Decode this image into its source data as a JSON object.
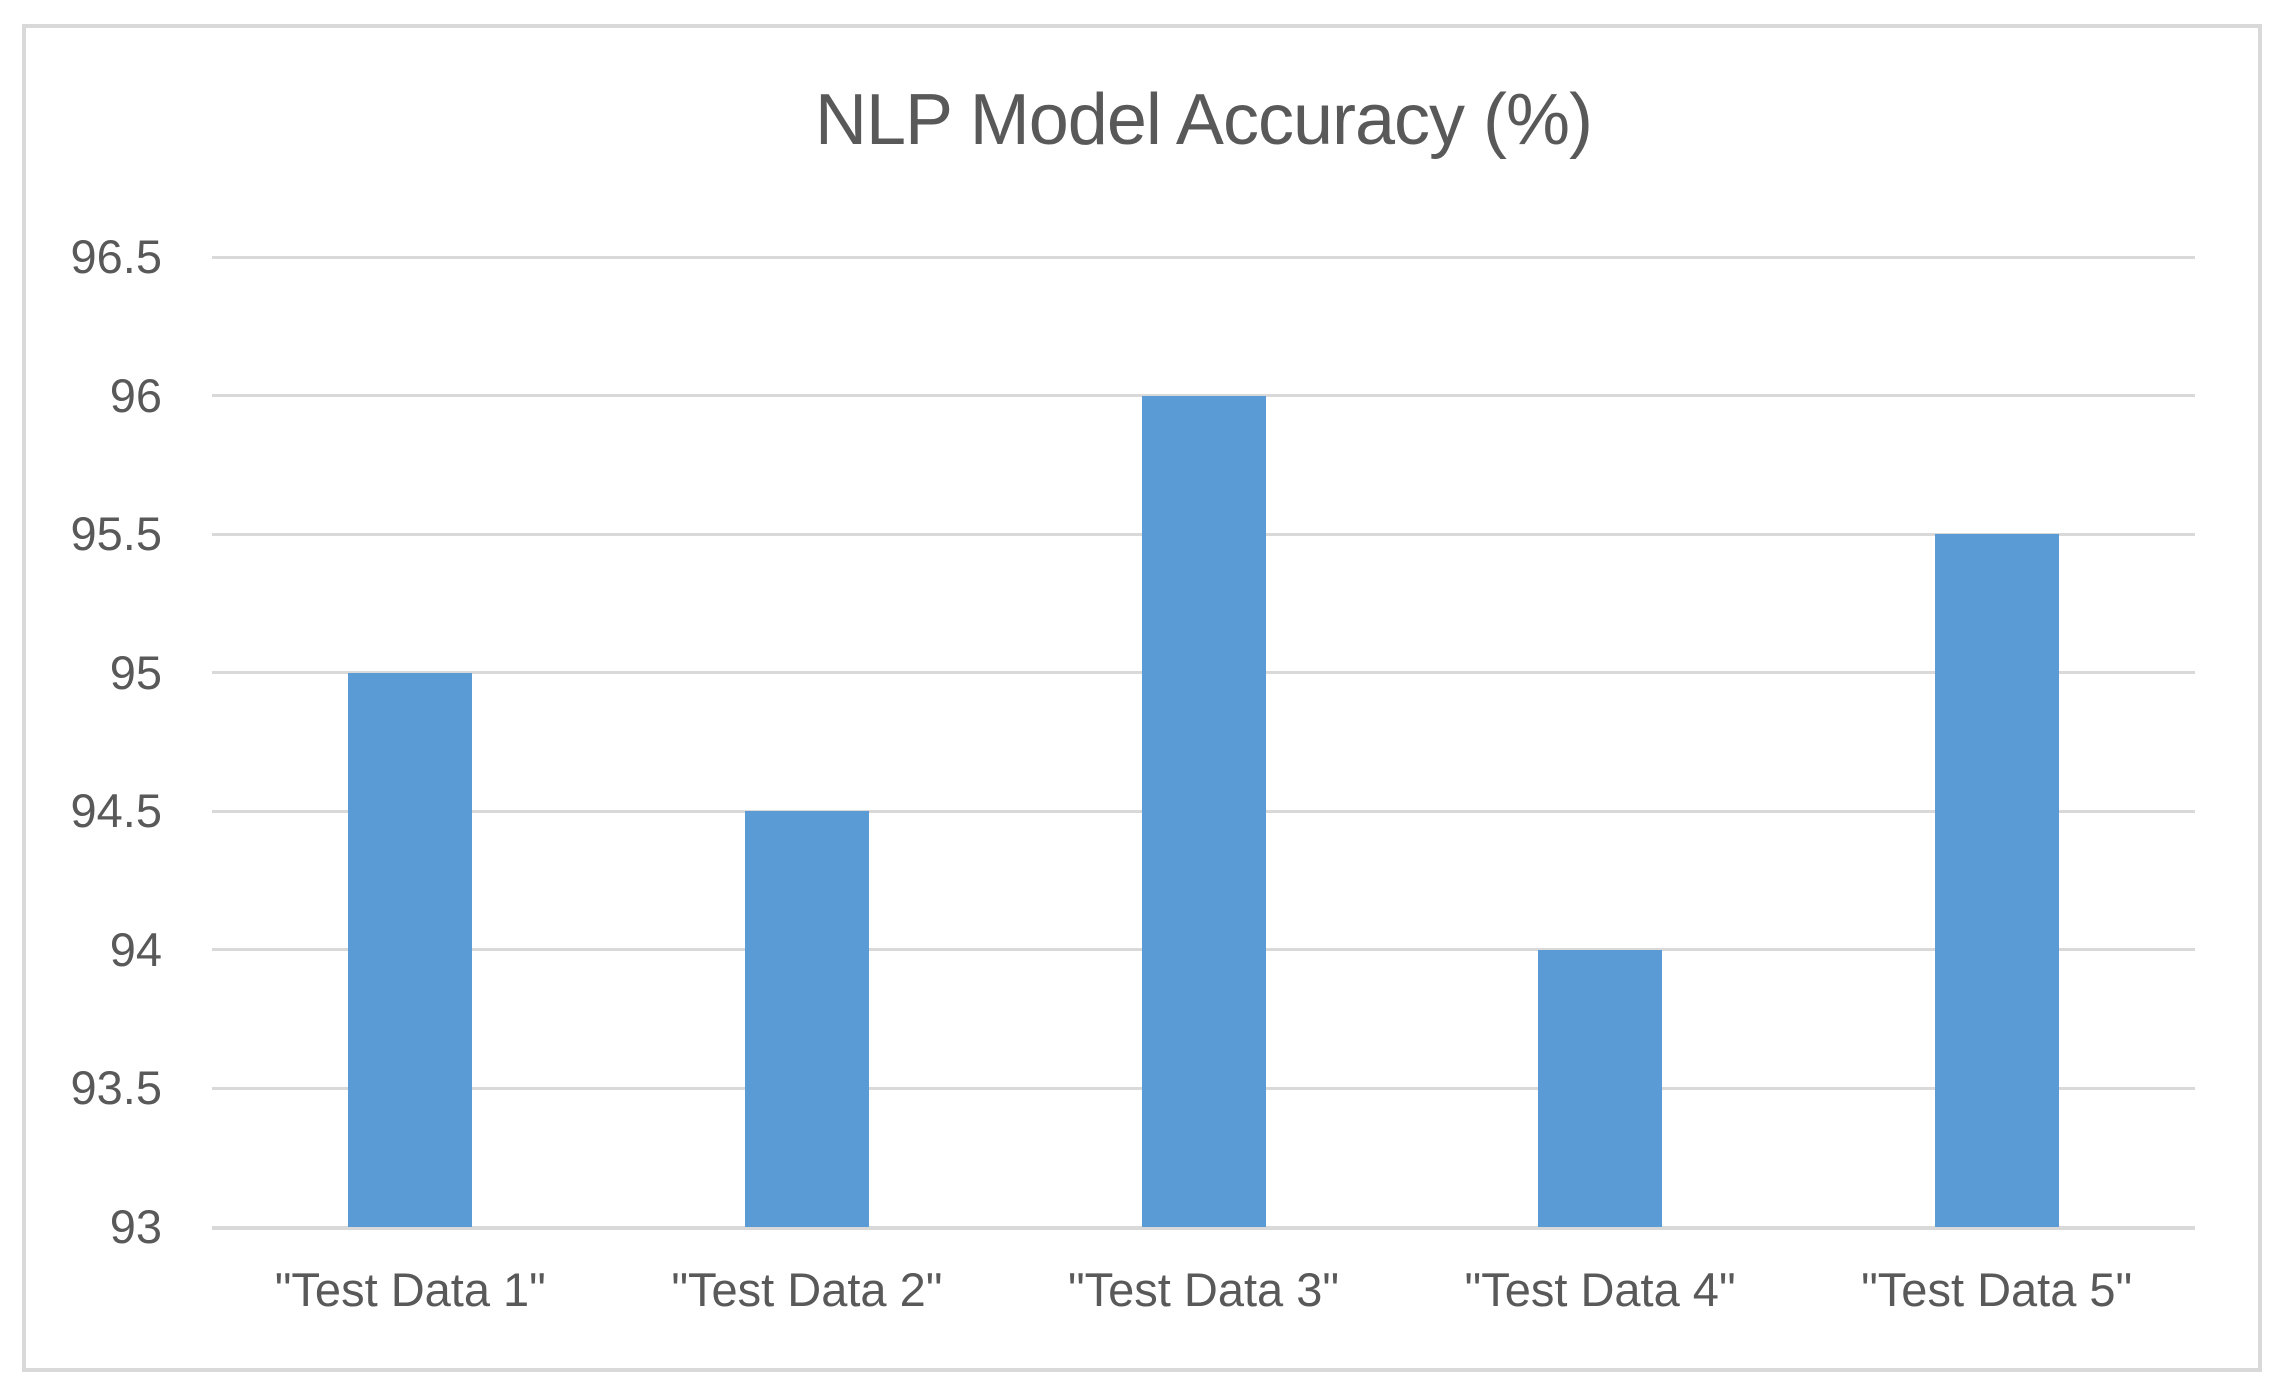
{
  "chart_data": {
    "type": "bar",
    "title": "NLP Model Accuracy (%)",
    "categories": [
      "\"Test Data 1\"",
      "\"Test Data 2\"",
      "\"Test Data 3\"",
      "\"Test Data 4\"",
      "\"Test Data 5\""
    ],
    "values": [
      95,
      94.5,
      96,
      94,
      95.5
    ],
    "xlabel": "",
    "ylabel": "",
    "ylim": [
      93,
      96.5
    ],
    "ytick_values": [
      96.5,
      96,
      95.5,
      95,
      94.5,
      94,
      93.5,
      93
    ],
    "ytick_labels": [
      "96.5",
      "96",
      "95.5",
      "95",
      "94.5",
      "94",
      "93.5",
      "93"
    ],
    "grid": true,
    "legend_position": "none",
    "colors": {
      "bar": "#5b9bd5",
      "gridline": "#d9d9d9",
      "frame_border": "#d9d9d9",
      "text": "#595959",
      "background": "#ffffff"
    }
  }
}
